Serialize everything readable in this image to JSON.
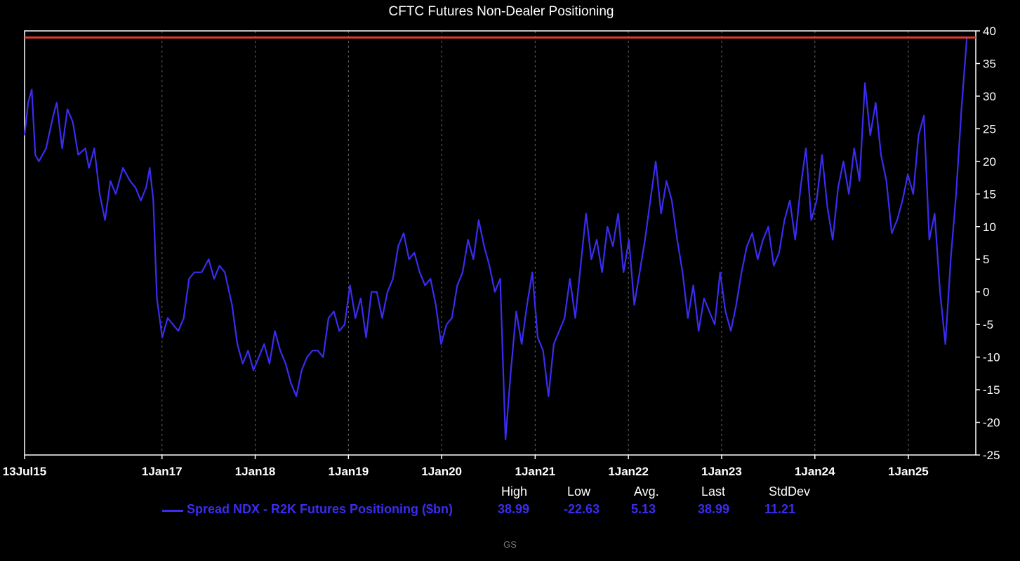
{
  "colors": {
    "background": "#000000",
    "series": "#3b2cf0",
    "reference_line": "#e03a2a",
    "axis": "#ffffff",
    "grid": "#666666",
    "footer": "#777777"
  },
  "chart_data": {
    "type": "line",
    "title": "CFTC Futures Non-Dealer Positioning",
    "xlabel": "",
    "ylabel": "",
    "x_range": [
      "2015-07-13",
      "2025-09-22"
    ],
    "ylim": [
      -25,
      40
    ],
    "y_ticks": [
      40,
      35,
      30,
      25,
      20,
      15,
      10,
      5,
      0,
      -5,
      -10,
      -15,
      -20,
      -25
    ],
    "y_axis_position": "right",
    "x_ticks": [
      {
        "date": "2015-07-13",
        "label": "13Jul15"
      },
      {
        "date": "2017-01-01",
        "label": "1Jan17"
      },
      {
        "date": "2018-01-01",
        "label": "1Jan18"
      },
      {
        "date": "2019-01-01",
        "label": "1Jan19"
      },
      {
        "date": "2020-01-01",
        "label": "1Jan20"
      },
      {
        "date": "2021-01-01",
        "label": "1Jan21"
      },
      {
        "date": "2022-01-01",
        "label": "1Jan22"
      },
      {
        "date": "2023-01-01",
        "label": "1Jan23"
      },
      {
        "date": "2024-01-01",
        "label": "1Jan24"
      },
      {
        "date": "2025-01-01",
        "label": "1Jan25"
      }
    ],
    "grid": "vertical dashed at year starts",
    "reference_lines": [
      {
        "y": 38.99
      }
    ],
    "legend_position": "bottom",
    "series": [
      {
        "name": "Spread NDX - R2K Futures Positioning ($bn)",
        "points": [
          [
            "2015-07-13",
            24
          ],
          [
            "2015-07-27",
            29
          ],
          [
            "2015-08-10",
            31
          ],
          [
            "2015-08-24",
            21
          ],
          [
            "2015-09-07",
            20
          ],
          [
            "2015-10-05",
            22
          ],
          [
            "2015-11-02",
            27
          ],
          [
            "2015-11-16",
            29
          ],
          [
            "2015-12-07",
            22
          ],
          [
            "2015-12-28",
            28
          ],
          [
            "2016-01-18",
            26
          ],
          [
            "2016-02-08",
            21
          ],
          [
            "2016-03-07",
            22
          ],
          [
            "2016-03-21",
            19
          ],
          [
            "2016-04-11",
            22
          ],
          [
            "2016-05-02",
            15
          ],
          [
            "2016-05-23",
            11
          ],
          [
            "2016-06-13",
            17
          ],
          [
            "2016-07-04",
            15
          ],
          [
            "2016-08-01",
            19
          ],
          [
            "2016-08-29",
            17
          ],
          [
            "2016-09-19",
            16
          ],
          [
            "2016-10-10",
            14
          ],
          [
            "2016-10-31",
            16
          ],
          [
            "2016-11-14",
            19
          ],
          [
            "2016-11-28",
            14
          ],
          [
            "2016-12-12",
            -1
          ],
          [
            "2017-01-02",
            -7
          ],
          [
            "2017-01-23",
            -4
          ],
          [
            "2017-02-13",
            -5
          ],
          [
            "2017-03-06",
            -6
          ],
          [
            "2017-03-27",
            -4
          ],
          [
            "2017-04-17",
            2
          ],
          [
            "2017-05-08",
            3
          ],
          [
            "2017-06-05",
            3
          ],
          [
            "2017-07-03",
            5
          ],
          [
            "2017-07-24",
            2
          ],
          [
            "2017-08-14",
            4
          ],
          [
            "2017-09-04",
            3
          ],
          [
            "2017-10-02",
            -2
          ],
          [
            "2017-10-23",
            -8
          ],
          [
            "2017-11-13",
            -11
          ],
          [
            "2017-12-04",
            -9
          ],
          [
            "2017-12-25",
            -12
          ],
          [
            "2018-01-15",
            -10
          ],
          [
            "2018-02-05",
            -8
          ],
          [
            "2018-02-26",
            -11
          ],
          [
            "2018-03-19",
            -6
          ],
          [
            "2018-04-09",
            -9
          ],
          [
            "2018-04-30",
            -11
          ],
          [
            "2018-05-21",
            -14
          ],
          [
            "2018-06-11",
            -16
          ],
          [
            "2018-07-02",
            -12
          ],
          [
            "2018-07-23",
            -10
          ],
          [
            "2018-08-13",
            -9
          ],
          [
            "2018-09-03",
            -9
          ],
          [
            "2018-09-24",
            -10
          ],
          [
            "2018-10-15",
            -4
          ],
          [
            "2018-11-05",
            -3
          ],
          [
            "2018-11-26",
            -6
          ],
          [
            "2018-12-17",
            -5
          ],
          [
            "2019-01-07",
            1
          ],
          [
            "2019-01-28",
            -4
          ],
          [
            "2019-02-18",
            -1
          ],
          [
            "2019-03-11",
            -7
          ],
          [
            "2019-04-01",
            0
          ],
          [
            "2019-04-22",
            0
          ],
          [
            "2019-05-13",
            -4
          ],
          [
            "2019-06-03",
            0
          ],
          [
            "2019-06-24",
            2
          ],
          [
            "2019-07-15",
            7
          ],
          [
            "2019-08-05",
            9
          ],
          [
            "2019-08-26",
            5
          ],
          [
            "2019-09-16",
            6
          ],
          [
            "2019-10-07",
            3
          ],
          [
            "2019-10-28",
            1
          ],
          [
            "2019-11-18",
            2
          ],
          [
            "2019-12-09",
            -2
          ],
          [
            "2019-12-30",
            -8
          ],
          [
            "2020-01-20",
            -5
          ],
          [
            "2020-02-10",
            -4
          ],
          [
            "2020-03-02",
            1
          ],
          [
            "2020-03-23",
            3
          ],
          [
            "2020-04-13",
            8
          ],
          [
            "2020-05-04",
            5
          ],
          [
            "2020-05-25",
            11
          ],
          [
            "2020-06-15",
            7
          ],
          [
            "2020-07-06",
            4
          ],
          [
            "2020-07-27",
            0
          ],
          [
            "2020-08-17",
            2
          ],
          [
            "2020-09-07",
            -22.63
          ],
          [
            "2020-09-28",
            -12
          ],
          [
            "2020-10-19",
            -3
          ],
          [
            "2020-11-09",
            -8
          ],
          [
            "2020-11-30",
            -2
          ],
          [
            "2020-12-21",
            3
          ],
          [
            "2021-01-11",
            -7
          ],
          [
            "2021-02-01",
            -9
          ],
          [
            "2021-02-22",
            -16
          ],
          [
            "2021-03-15",
            -8
          ],
          [
            "2021-04-05",
            -6
          ],
          [
            "2021-04-26",
            -4
          ],
          [
            "2021-05-17",
            2
          ],
          [
            "2021-06-07",
            -4
          ],
          [
            "2021-06-28",
            4
          ],
          [
            "2021-07-19",
            12
          ],
          [
            "2021-08-09",
            5
          ],
          [
            "2021-08-30",
            8
          ],
          [
            "2021-09-20",
            3
          ],
          [
            "2021-10-11",
            10
          ],
          [
            "2021-11-01",
            7
          ],
          [
            "2021-11-22",
            12
          ],
          [
            "2021-12-13",
            3
          ],
          [
            "2022-01-03",
            8
          ],
          [
            "2022-01-24",
            -2
          ],
          [
            "2022-02-14",
            3
          ],
          [
            "2022-03-07",
            8
          ],
          [
            "2022-03-28",
            14
          ],
          [
            "2022-04-18",
            20
          ],
          [
            "2022-05-09",
            12
          ],
          [
            "2022-05-30",
            17
          ],
          [
            "2022-06-20",
            14
          ],
          [
            "2022-07-11",
            8
          ],
          [
            "2022-08-01",
            3
          ],
          [
            "2022-08-22",
            -4
          ],
          [
            "2022-09-12",
            1
          ],
          [
            "2022-10-03",
            -6
          ],
          [
            "2022-10-24",
            -1
          ],
          [
            "2022-11-14",
            -3
          ],
          [
            "2022-12-05",
            -5
          ],
          [
            "2022-12-26",
            3
          ],
          [
            "2023-01-16",
            -3
          ],
          [
            "2023-02-06",
            -6
          ],
          [
            "2023-02-27",
            -2
          ],
          [
            "2023-03-20",
            3
          ],
          [
            "2023-04-10",
            7
          ],
          [
            "2023-05-01",
            9
          ],
          [
            "2023-05-22",
            5
          ],
          [
            "2023-06-12",
            8
          ],
          [
            "2023-07-03",
            10
          ],
          [
            "2023-07-24",
            4
          ],
          [
            "2023-08-14",
            6
          ],
          [
            "2023-09-04",
            11
          ],
          [
            "2023-09-25",
            14
          ],
          [
            "2023-10-16",
            8
          ],
          [
            "2023-11-06",
            16
          ],
          [
            "2023-11-27",
            22
          ],
          [
            "2023-12-18",
            11
          ],
          [
            "2024-01-08",
            14
          ],
          [
            "2024-01-29",
            21
          ],
          [
            "2024-02-19",
            13
          ],
          [
            "2024-03-11",
            8
          ],
          [
            "2024-04-01",
            16
          ],
          [
            "2024-04-22",
            20
          ],
          [
            "2024-05-13",
            15
          ],
          [
            "2024-06-03",
            22
          ],
          [
            "2024-06-24",
            17
          ],
          [
            "2024-07-15",
            32
          ],
          [
            "2024-08-05",
            24
          ],
          [
            "2024-08-26",
            29
          ],
          [
            "2024-09-16",
            21
          ],
          [
            "2024-10-07",
            17
          ],
          [
            "2024-10-28",
            9
          ],
          [
            "2024-11-18",
            11
          ],
          [
            "2024-12-09",
            14
          ],
          [
            "2024-12-30",
            18
          ],
          [
            "2025-01-20",
            15
          ],
          [
            "2025-02-10",
            24
          ],
          [
            "2025-03-03",
            27
          ],
          [
            "2025-03-24",
            8
          ],
          [
            "2025-04-14",
            12
          ],
          [
            "2025-05-05",
            0
          ],
          [
            "2025-05-26",
            -8
          ],
          [
            "2025-06-16",
            5
          ],
          [
            "2025-07-07",
            15
          ],
          [
            "2025-07-28",
            28
          ],
          [
            "2025-08-18",
            38.99
          ]
        ]
      }
    ],
    "stats": {
      "headers": [
        "High",
        "Low",
        "Avg.",
        "Last",
        "StdDev"
      ],
      "values": [
        "38.99",
        "-22.63",
        "5.13",
        "38.99",
        "11.21"
      ]
    }
  },
  "footer": {
    "source": "GS"
  }
}
